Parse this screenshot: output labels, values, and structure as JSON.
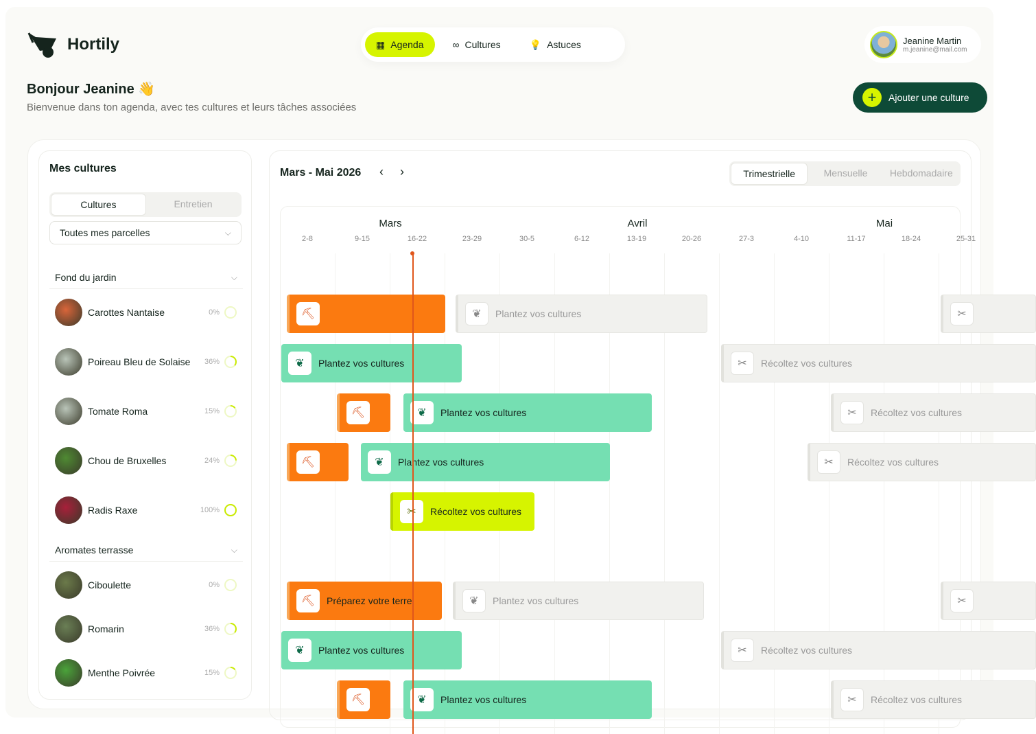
{
  "app": {
    "name": "Hortily"
  },
  "nav": {
    "items": [
      {
        "label": "Agenda",
        "icon": "calendar-icon"
      },
      {
        "label": "Cultures",
        "icon": "binoculars-icon"
      },
      {
        "label": "Astuces",
        "icon": "lightbulb-icon"
      }
    ],
    "active": "Agenda"
  },
  "user": {
    "name": "Jeanine Martin",
    "email": "m.jeanine@mail.com"
  },
  "header": {
    "greeting": "Bonjour Jeanine",
    "emoji": "👋",
    "subtitle": "Bienvenue dans ton agenda, avec tes cultures et leurs tâches associées",
    "add_button": "Ajouter une culture"
  },
  "sidebar": {
    "title": "Mes cultures",
    "tabs": [
      "Cultures",
      "Entretien"
    ],
    "active_tab": "Cultures",
    "filter": "Toutes mes parcelles",
    "groups": [
      {
        "name": "Fond du jardin",
        "items": [
          {
            "name": "Carottes Nantaise",
            "progress": "0%",
            "value": 0,
            "color": "#d9653a"
          },
          {
            "name": "Poireau Bleu de Solaise",
            "progress": "36%",
            "value": 36,
            "color": "#b9c4b8"
          },
          {
            "name": "Tomate Roma",
            "progress": "15%",
            "value": 15,
            "color": "#b9c4b8"
          },
          {
            "name": "Chou de Bruxelles",
            "progress": "24%",
            "value": 24,
            "color": "#4f8a33"
          },
          {
            "name": "Radis Raxe",
            "progress": "100%",
            "value": 100,
            "color": "#a8203a"
          }
        ]
      },
      {
        "name": "Aromates terrasse",
        "items": [
          {
            "name": "Ciboulette",
            "progress": "0%",
            "value": 0,
            "color": "#6b7a4a"
          },
          {
            "name": "Romarin",
            "progress": "36%",
            "value": 36,
            "color": "#6a7f55"
          },
          {
            "name": "Menthe Poivrée",
            "progress": "15%",
            "value": 15,
            "color": "#4aa33a"
          }
        ]
      }
    ]
  },
  "agenda": {
    "period": "Mars - Mai 2026",
    "views": [
      "Trimestrielle",
      "Mensuelle",
      "Hebdomadaire"
    ],
    "active_view": "Trimestrielle",
    "months": [
      "Mars",
      "Avril",
      "Mai"
    ],
    "weeks": [
      "2-8",
      "9-15",
      "16-22",
      "23-29",
      "30-5",
      "6-12",
      "13-19",
      "20-26",
      "27-3",
      "4-10",
      "11-17",
      "18-24",
      "25-31"
    ],
    "tasks": {
      "prepare": "Préparez votre terre",
      "plant": "Plantez vos cultures",
      "harvest": "Récoltez vos cultures"
    },
    "colors": {
      "prepare": "#fb7a10",
      "plant": "#75dfb2",
      "harvest_active": "#d6f400",
      "upcoming": "#f1f1ee",
      "today": "#e0561b"
    }
  }
}
